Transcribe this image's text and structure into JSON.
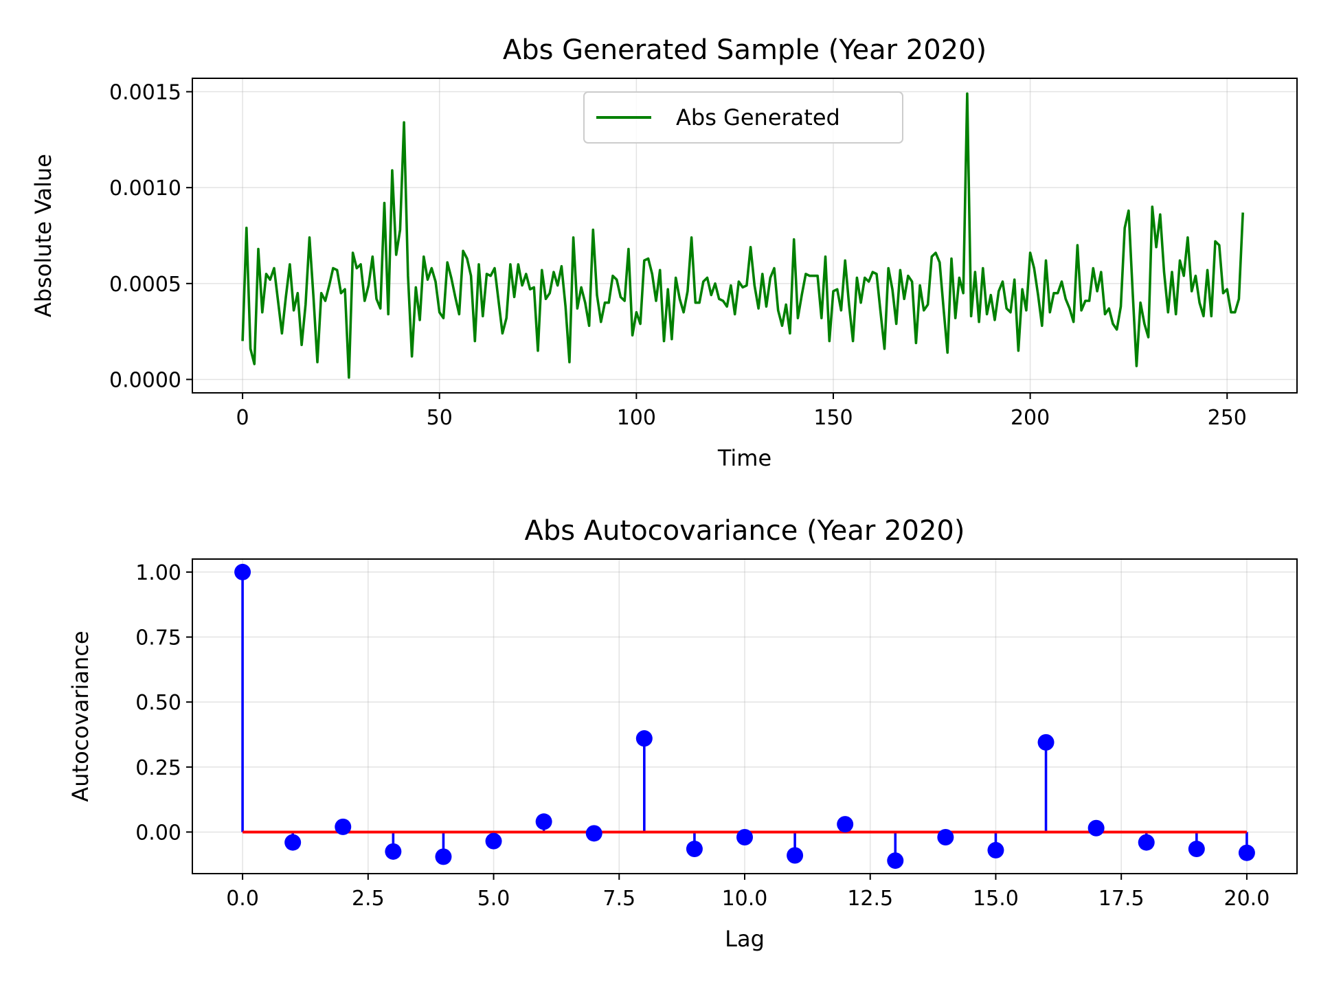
{
  "chart_data": [
    {
      "type": "line",
      "title": "Abs Generated Sample (Year 2020)",
      "xlabel": "Time",
      "ylabel": "Absolute Value",
      "xlim": [
        -12.75,
        267.75
      ],
      "ylim": [
        -7e-05,
        0.00157
      ],
      "xticks": [
        0,
        50,
        100,
        150,
        200,
        250
      ],
      "xtick_labels": [
        "0",
        "50",
        "100",
        "150",
        "200",
        "250"
      ],
      "yticks": [
        0,
        0.0005,
        0.001,
        0.0015
      ],
      "ytick_labels": [
        "0.0000",
        "0.0005",
        "0.0010",
        "0.0015"
      ],
      "grid": true,
      "legend": "upper-center",
      "series": [
        {
          "name": "Abs Generated",
          "color": "#008000",
          "x_start": 0,
          "x_step": 1,
          "values": [
            0.0002,
            0.00079,
            0.00016,
            8e-05,
            0.00068,
            0.00035,
            0.00055,
            0.00052,
            0.00058,
            0.00041,
            0.00024,
            0.00043,
            0.0006,
            0.00036,
            0.00045,
            0.00018,
            0.00039,
            0.00074,
            0.00043,
            9e-05,
            0.00045,
            0.00041,
            0.00049,
            0.00058,
            0.00057,
            0.00045,
            0.00047,
            1e-05,
            0.00066,
            0.00058,
            0.0006,
            0.00041,
            0.00049,
            0.00064,
            0.00042,
            0.00037,
            0.00092,
            0.00034,
            0.00109,
            0.00065,
            0.00078,
            0.00134,
            0.00054,
            0.00012,
            0.00048,
            0.00031,
            0.00064,
            0.00052,
            0.00058,
            0.00051,
            0.00035,
            0.00032,
            0.00061,
            0.00053,
            0.00043,
            0.00034,
            0.00067,
            0.00063,
            0.00054,
            0.0002,
            0.0006,
            0.00033,
            0.00055,
            0.00054,
            0.00058,
            0.00041,
            0.00024,
            0.00032,
            0.0006,
            0.00043,
            0.0006,
            0.00049,
            0.00055,
            0.00047,
            0.00048,
            0.00015,
            0.00057,
            0.00042,
            0.00045,
            0.00056,
            0.00049,
            0.00059,
            0.00038,
            9e-05,
            0.00074,
            0.00037,
            0.00048,
            0.0004,
            0.00028,
            0.00078,
            0.00044,
            0.0003,
            0.0004,
            0.0004,
            0.00054,
            0.00052,
            0.00043,
            0.00041,
            0.00068,
            0.00023,
            0.00035,
            0.00029,
            0.00062,
            0.00063,
            0.00055,
            0.00041,
            0.00057,
            0.0002,
            0.00047,
            0.00021,
            0.00053,
            0.00042,
            0.00035,
            0.00046,
            0.00074,
            0.0004,
            0.0004,
            0.00051,
            0.00053,
            0.00044,
            0.0005,
            0.00042,
            0.00041,
            0.00038,
            0.00049,
            0.00034,
            0.00051,
            0.00048,
            0.00049,
            0.00069,
            0.00049,
            0.00037,
            0.00055,
            0.00038,
            0.00053,
            0.00058,
            0.00036,
            0.00028,
            0.00039,
            0.00024,
            0.00073,
            0.00032,
            0.00044,
            0.00055,
            0.00054,
            0.00054,
            0.00054,
            0.00032,
            0.00064,
            0.0002,
            0.00046,
            0.00047,
            0.00036,
            0.00062,
            0.00039,
            0.0002,
            0.00053,
            0.0004,
            0.00053,
            0.00051,
            0.00056,
            0.00055,
            0.00035,
            0.00016,
            0.00058,
            0.00047,
            0.00029,
            0.00057,
            0.00042,
            0.00054,
            0.00051,
            0.00019,
            0.00049,
            0.00036,
            0.00039,
            0.00064,
            0.00066,
            0.00061,
            0.00037,
            0.00014,
            0.00063,
            0.00032,
            0.00053,
            0.00045,
            0.00149,
            0.00033,
            0.00056,
            0.0003,
            0.00058,
            0.00034,
            0.00044,
            0.00031,
            0.00046,
            0.00051,
            0.00037,
            0.00035,
            0.00052,
            0.00015,
            0.00047,
            0.00036,
            0.00066,
            0.00058,
            0.00044,
            0.00028,
            0.00062,
            0.00035,
            0.00045,
            0.00045,
            0.00051,
            0.00042,
            0.00037,
            0.0003,
            0.0007,
            0.00036,
            0.00041,
            0.00041,
            0.00058,
            0.00046,
            0.00056,
            0.00034,
            0.00037,
            0.00029,
            0.00026,
            0.00038,
            0.00079,
            0.00088,
            0.00046,
            7e-05,
            0.0004,
            0.00029,
            0.00022,
            0.0009,
            0.00069,
            0.00086,
            0.00056,
            0.00035,
            0.00056,
            0.00034,
            0.00062,
            0.00054,
            0.00074,
            0.00046,
            0.00054,
            0.0004,
            0.00033,
            0.00057,
            0.00033,
            0.00072,
            0.0007,
            0.00045,
            0.00047,
            0.00035,
            0.00035,
            0.00042,
            0.00087
          ]
        }
      ]
    },
    {
      "type": "stem",
      "title": "Abs Autocovariance (Year 2020)",
      "xlabel": "Lag",
      "ylabel": "Autocovariance",
      "xlim": [
        -1.0,
        21.0
      ],
      "ylim": [
        -0.16,
        1.05
      ],
      "xticks": [
        0,
        2.5,
        5,
        7.5,
        10,
        12.5,
        15,
        17.5,
        20
      ],
      "xtick_labels": [
        "0.0",
        "2.5",
        "5.0",
        "7.5",
        "10.0",
        "12.5",
        "15.0",
        "17.5",
        "20.0"
      ],
      "yticks": [
        0,
        0.25,
        0.5,
        0.75,
        1.0
      ],
      "ytick_labels": [
        "0.00",
        "0.25",
        "0.50",
        "0.75",
        "1.00"
      ],
      "grid": true,
      "marker_color": "#0000ff",
      "baseline_color": "#ff0000",
      "series": [
        {
          "lags": [
            0,
            1,
            2,
            3,
            4,
            5,
            6,
            7,
            8,
            9,
            10,
            11,
            12,
            13,
            14,
            15,
            16,
            17,
            18,
            19,
            20
          ],
          "values": [
            1.0,
            -0.04,
            0.02,
            -0.075,
            -0.095,
            -0.035,
            0.04,
            -0.005,
            0.36,
            -0.065,
            -0.02,
            -0.09,
            0.03,
            -0.11,
            -0.02,
            -0.07,
            0.345,
            0.015,
            -0.04,
            -0.065,
            -0.08
          ]
        }
      ]
    }
  ]
}
